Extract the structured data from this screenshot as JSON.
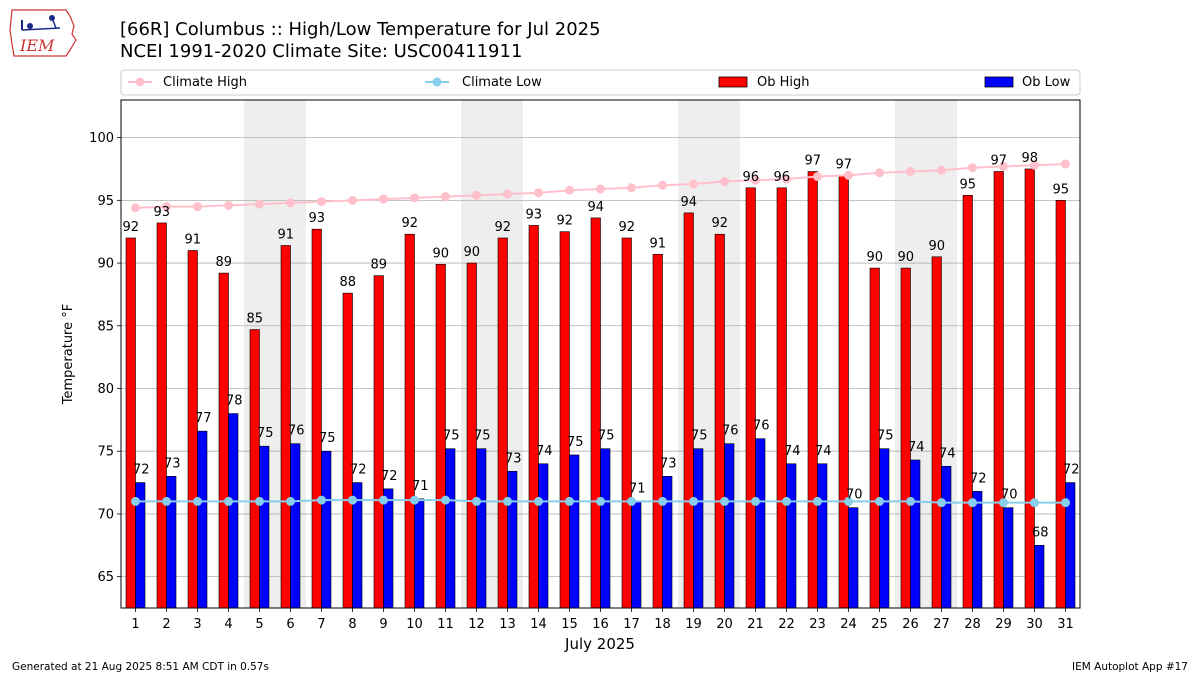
{
  "header": {
    "logo_text": "IEM",
    "title_line1": "[66R] Columbus :: High/Low Temperature for Jul 2025",
    "title_line2": "NCEI 1991-2020 Climate Site: USC00411911"
  },
  "footer": {
    "left": "Generated at 21 Aug 2025 8:51 AM CDT in 0.57s",
    "right": "IEM Autoplot App #17"
  },
  "colors": {
    "ob_high": "#ff0000",
    "ob_low": "#0000ff",
    "climate_high": "#ffc0cb",
    "climate_low": "#87ceeb",
    "weekend_band": "#eeeeee",
    "grid": "#b0b0b0"
  },
  "chart_data": {
    "type": "bar",
    "xlabel": "July 2025",
    "ylabel": "Temperature °F",
    "ylim": [
      62.5,
      103
    ],
    "yticks": [
      65,
      70,
      75,
      80,
      85,
      90,
      95,
      100
    ],
    "grid": "horizontal",
    "legend_position": "top",
    "weekend_days": [
      5,
      6,
      12,
      13,
      19,
      20,
      26,
      27
    ],
    "categories": [
      "1",
      "2",
      "3",
      "4",
      "5",
      "6",
      "7",
      "8",
      "9",
      "10",
      "11",
      "12",
      "13",
      "14",
      "15",
      "16",
      "17",
      "18",
      "19",
      "20",
      "21",
      "22",
      "23",
      "24",
      "25",
      "26",
      "27",
      "28",
      "29",
      "30",
      "31"
    ],
    "series": [
      {
        "name": "Ob High",
        "kind": "bar",
        "values": [
          92,
          93,
          91,
          89,
          85,
          91,
          93,
          88,
          89,
          92,
          90,
          90,
          92,
          93,
          92,
          94,
          92,
          91,
          94,
          92,
          96,
          96,
          97,
          97,
          90,
          90,
          90,
          95,
          97,
          98,
          95
        ],
        "plotted": [
          92.0,
          93.2,
          91.0,
          89.2,
          84.7,
          91.4,
          92.7,
          87.6,
          89.0,
          92.3,
          89.9,
          90.0,
          92.0,
          93.0,
          92.5,
          93.6,
          92.0,
          90.7,
          94.0,
          92.3,
          96.0,
          96.0,
          97.3,
          97.0,
          89.6,
          89.6,
          90.5,
          95.4,
          97.3,
          97.5,
          95.0
        ]
      },
      {
        "name": "Ob Low",
        "kind": "bar",
        "values": [
          72,
          73,
          77,
          78,
          75,
          76,
          75,
          72,
          72,
          71,
          75,
          75,
          73,
          74,
          75,
          75,
          71,
          73,
          75,
          76,
          76,
          74,
          74,
          70,
          75,
          74,
          74,
          72,
          70,
          68,
          72
        ],
        "plotted": [
          72.5,
          73.0,
          76.6,
          78.0,
          75.4,
          75.6,
          75.0,
          72.5,
          72.0,
          71.2,
          75.2,
          75.2,
          73.4,
          74.0,
          74.7,
          75.2,
          71.0,
          73.0,
          75.2,
          75.6,
          76.0,
          74.0,
          74.0,
          70.5,
          75.2,
          74.3,
          73.8,
          71.8,
          70.5,
          67.5,
          72.5
        ]
      },
      {
        "name": "Climate High",
        "kind": "line",
        "values": [
          94.4,
          94.5,
          94.5,
          94.6,
          94.7,
          94.8,
          94.9,
          95.0,
          95.1,
          95.2,
          95.3,
          95.4,
          95.5,
          95.6,
          95.8,
          95.9,
          96.0,
          96.2,
          96.3,
          96.5,
          96.6,
          96.7,
          96.9,
          97.0,
          97.2,
          97.3,
          97.4,
          97.6,
          97.7,
          97.8,
          97.9
        ]
      },
      {
        "name": "Climate Low",
        "kind": "line",
        "values": [
          71.0,
          71.0,
          71.0,
          71.0,
          71.0,
          71.0,
          71.1,
          71.1,
          71.1,
          71.1,
          71.1,
          71.0,
          71.0,
          71.0,
          71.0,
          71.0,
          71.0,
          71.0,
          71.0,
          71.0,
          71.0,
          71.0,
          71.0,
          71.0,
          71.0,
          71.0,
          70.9,
          70.9,
          70.9,
          70.9,
          70.9
        ]
      }
    ]
  }
}
